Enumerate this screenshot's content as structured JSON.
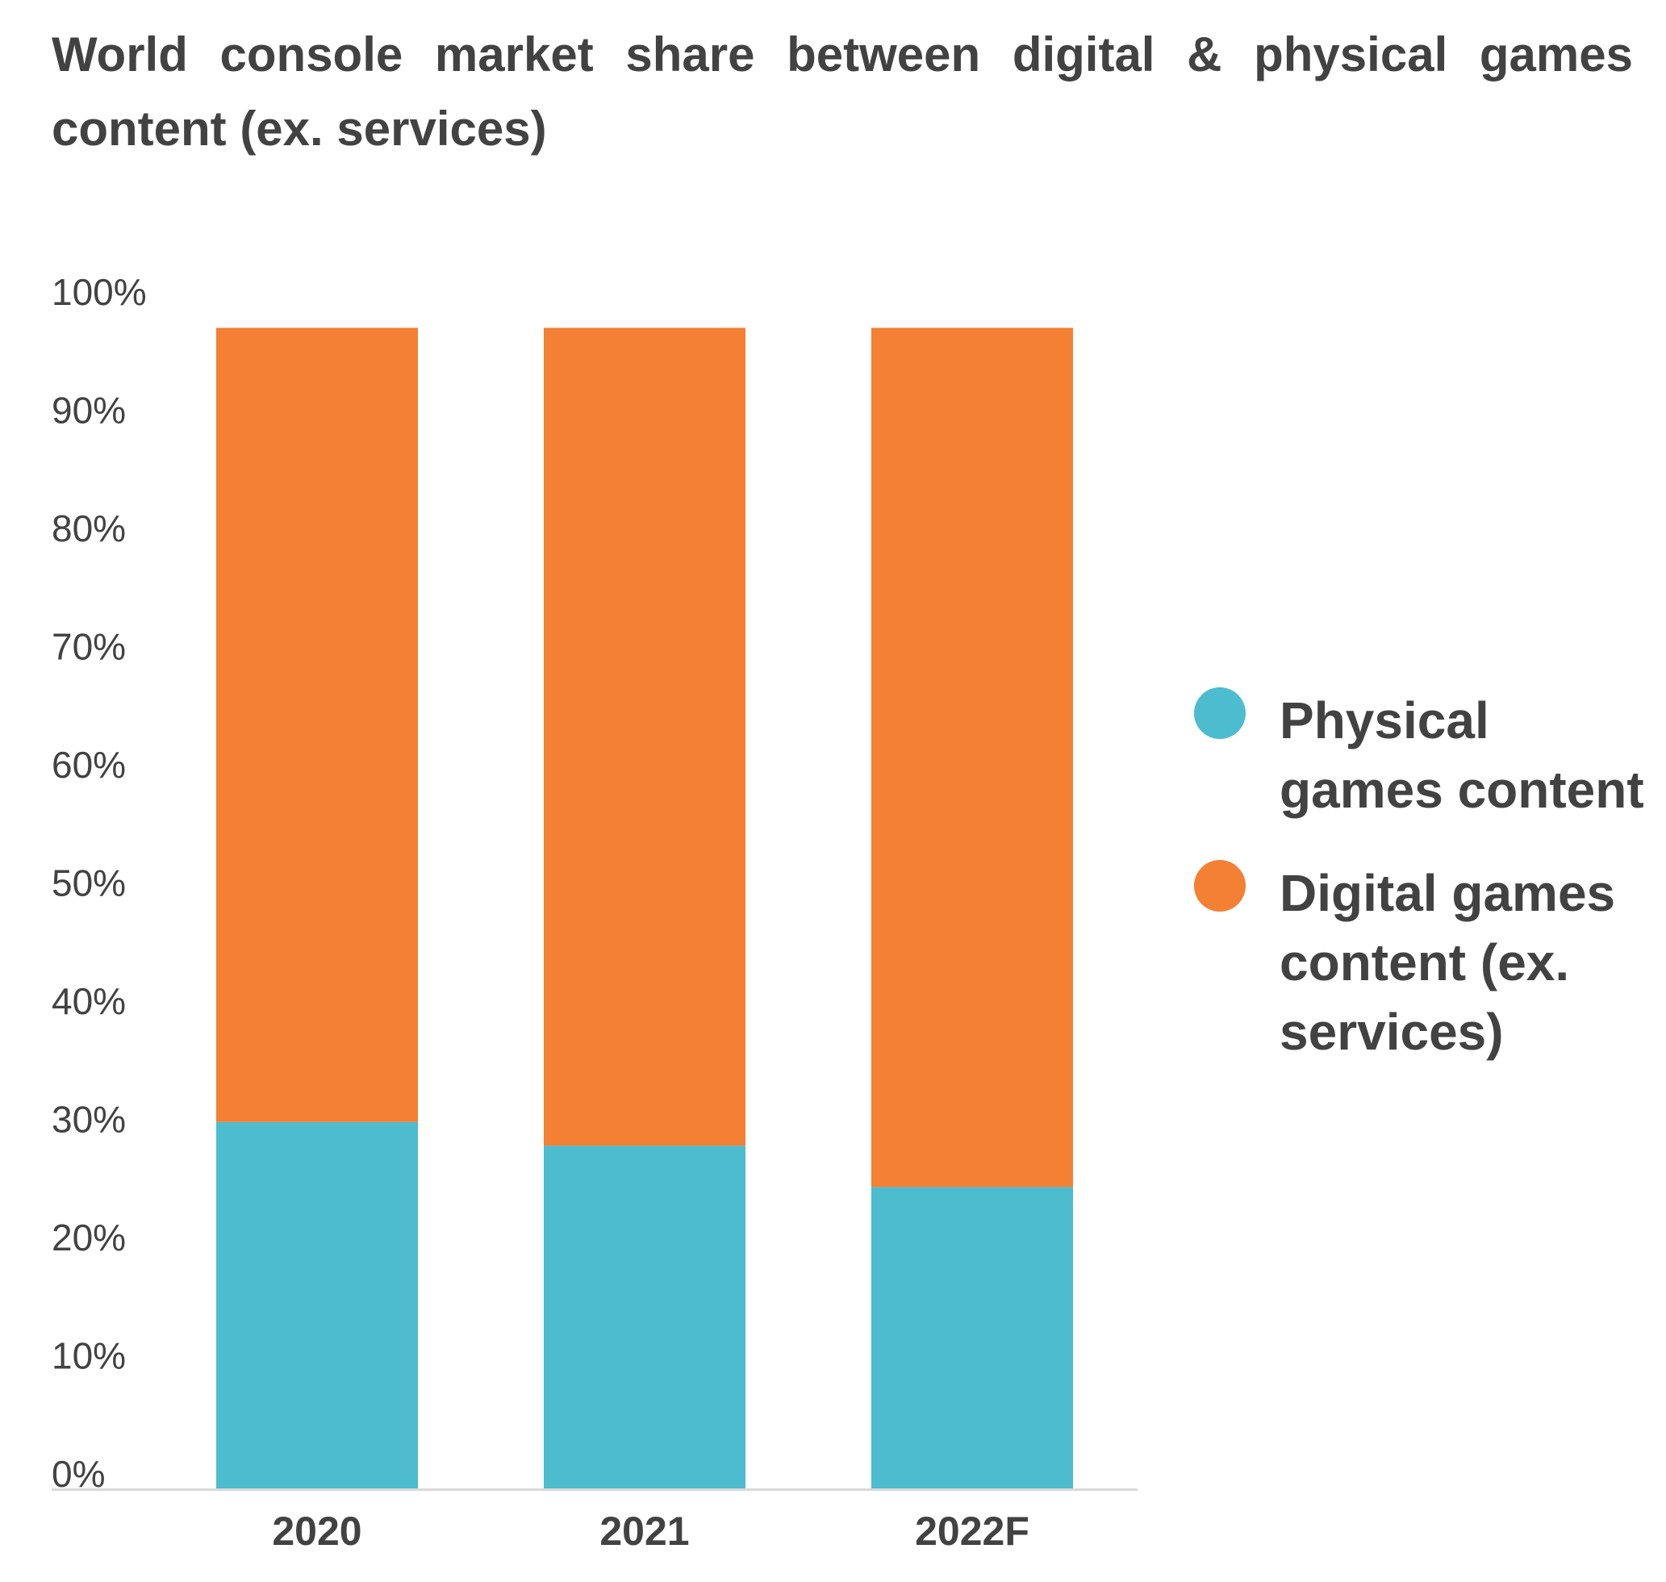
{
  "chart_data": {
    "type": "bar",
    "stacked": true,
    "title": "World console market share between digital & physical games content (ex. services)",
    "xlabel": "",
    "ylabel": "",
    "categories": [
      "2020",
      "2021",
      "2022F"
    ],
    "series": [
      {
        "name": "Physical games content",
        "color": "#4DBCCF",
        "values": [
          31,
          29,
          25.5
        ]
      },
      {
        "name": "Digital games content (ex. services)",
        "color": "#F38033",
        "values": [
          69,
          71,
          74.5
        ]
      }
    ],
    "ylim": [
      0,
      100
    ],
    "yticks": [
      {
        "value": 0,
        "label": "0%"
      },
      {
        "value": 10,
        "label": "10%"
      },
      {
        "value": 20,
        "label": "20%"
      },
      {
        "value": 30,
        "label": "30%"
      },
      {
        "value": 40,
        "label": "40%"
      },
      {
        "value": 50,
        "label": "50%"
      },
      {
        "value": 60,
        "label": "60%"
      },
      {
        "value": 70,
        "label": "70%"
      },
      {
        "value": 80,
        "label": "80%"
      },
      {
        "value": 90,
        "label": "90%"
      },
      {
        "value": 100,
        "label": "100%"
      }
    ],
    "grid": false,
    "legend_position": "right",
    "axis_color": "#D9D9D9"
  }
}
